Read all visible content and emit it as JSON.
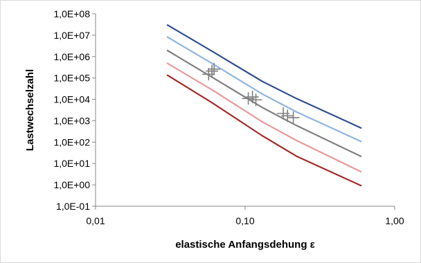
{
  "chart_data": {
    "type": "line",
    "title": "",
    "xlabel": "elastische Anfangsdehung ε",
    "ylabel": "Lastwechselzahl",
    "x_scale": "log",
    "y_scale": "log",
    "xlim": [
      0.01,
      1.0
    ],
    "ylim": [
      0.1,
      100000000
    ],
    "x_ticks": [
      {
        "value": 0.01,
        "label": "0,01"
      },
      {
        "value": 0.1,
        "label": "0,10"
      },
      {
        "value": 1.0,
        "label": "1,00"
      }
    ],
    "y_ticks": [
      {
        "value": 0.1,
        "label": "1,0E-01"
      },
      {
        "value": 1,
        "label": "1,0E+00"
      },
      {
        "value": 10,
        "label": "1,0E+01"
      },
      {
        "value": 100,
        "label": "1,0E+02"
      },
      {
        "value": 1000,
        "label": "1,0E+03"
      },
      {
        "value": 10000,
        "label": "1,0E+04"
      },
      {
        "value": 100000,
        "label": "1,0E+05"
      },
      {
        "value": 1000000,
        "label": "1,0E+06"
      },
      {
        "value": 10000000,
        "label": "1,0E+07"
      },
      {
        "value": 100000000,
        "label": "1,0E+08"
      }
    ],
    "grid": false,
    "legend": "none",
    "series": [
      {
        "color": "#2f4f8f",
        "points": [
          [
            0.03,
            31000000
          ],
          [
            0.06,
            1800000
          ],
          [
            0.13,
            70000
          ],
          [
            0.22,
            11000
          ],
          [
            0.6,
            450
          ]
        ]
      },
      {
        "color": "#8eb4e3",
        "points": [
          [
            0.03,
            8500000
          ],
          [
            0.06,
            480000
          ],
          [
            0.13,
            18000
          ],
          [
            0.22,
            2600
          ],
          [
            0.6,
            105
          ]
        ]
      },
      {
        "color": "#7f7f7f",
        "points": [
          [
            0.03,
            2000000
          ],
          [
            0.06,
            110000
          ],
          [
            0.13,
            4200
          ],
          [
            0.22,
            600
          ],
          [
            0.6,
            21
          ]
        ]
      },
      {
        "color": "#e69a9a",
        "points": [
          [
            0.03,
            500000
          ],
          [
            0.06,
            28000
          ],
          [
            0.13,
            900
          ],
          [
            0.22,
            120
          ],
          [
            0.6,
            4
          ]
        ]
      },
      {
        "color": "#a52a2a",
        "points": [
          [
            0.03,
            140000
          ],
          [
            0.06,
            7000
          ],
          [
            0.13,
            200
          ],
          [
            0.22,
            22
          ],
          [
            0.6,
            0.9
          ]
        ]
      }
    ],
    "markers": {
      "symbol": "plus",
      "color": "#7f7f7f",
      "points": [
        [
          0.057,
          150000
        ],
        [
          0.06,
          210000
        ],
        [
          0.062,
          260000
        ],
        [
          0.105,
          11000
        ],
        [
          0.112,
          13000
        ],
        [
          0.118,
          9500
        ],
        [
          0.18,
          2200
        ],
        [
          0.192,
          1700
        ],
        [
          0.21,
          1400
        ]
      ]
    }
  }
}
